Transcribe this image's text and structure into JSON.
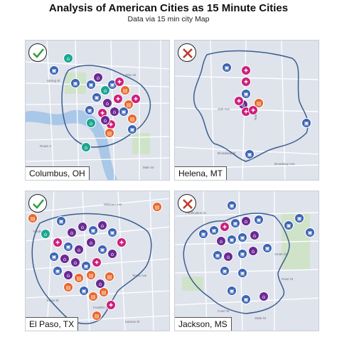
{
  "title": "Analysis of American Cities as 15 Minute Cities",
  "subtitle": "Data via 15 min city Map",
  "colors": {
    "map_background": "#dfe3ec",
    "road": "#ffffff",
    "green_area": "#cfe3c9",
    "water": "#a9c8e8",
    "boundary": "#3b5e8e",
    "teal": "#1aa690",
    "blue": "#3c64b4",
    "purple": "#6a2a92",
    "magenta": "#cc1f7a",
    "orange": "#e8662a",
    "green_check": "#2e9e3a",
    "red_x": "#c0392b"
  },
  "panels": [
    {
      "id": "columbus",
      "label": "Columbus, OH",
      "verdict": "check",
      "streets": [
        "Spring St",
        "Ohio St",
        "Route 3",
        "Main St"
      ]
    },
    {
      "id": "helena",
      "label": "Helena, MT",
      "verdict": "x",
      "streets": [
        "11th Ave",
        "Broadway St",
        "Raleigh St",
        "Broadway Ave"
      ]
    },
    {
      "id": "elpaso",
      "label": "El Paso, TX",
      "verdict": "check",
      "streets": [
        "Yandell Dr",
        "Texas Ave",
        "Missouri Ave",
        "Franklin Ave",
        "Kansas St",
        "Mesa St"
      ]
    },
    {
      "id": "jackson",
      "label": "Jackson, MS",
      "verdict": "x",
      "streets": [
        "Fortification St",
        "Amite St",
        "Pearl St",
        "Court St",
        "State St"
      ]
    }
  ]
}
